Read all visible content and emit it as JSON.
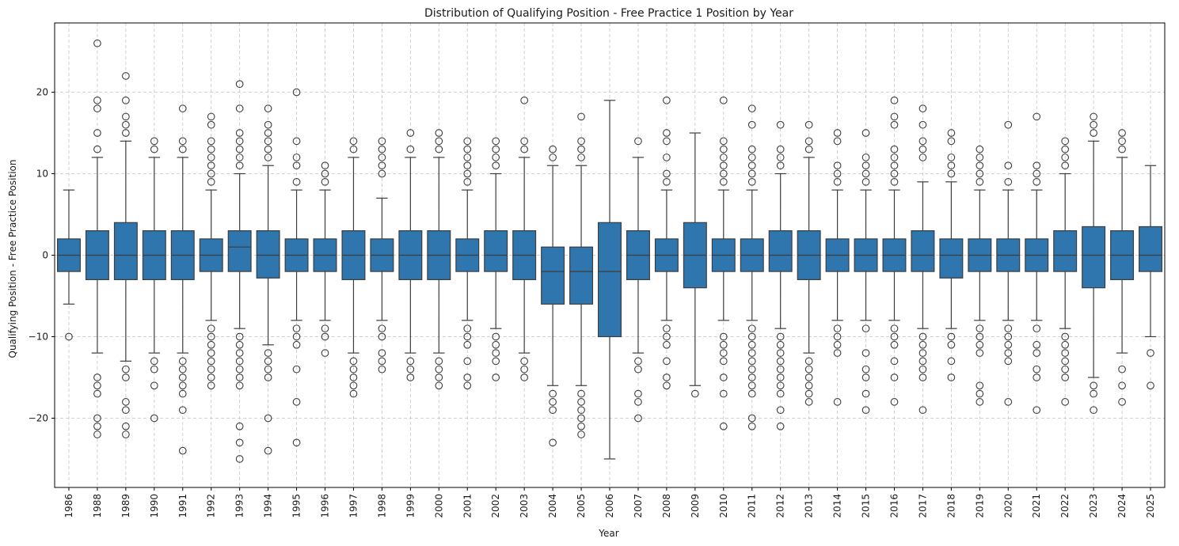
{
  "chart_data": {
    "type": "box",
    "title": "Distribution of Qualifying Position - Free Practice 1 Position by Year",
    "xlabel": "Year",
    "ylabel": "Qualifying Position - Free Practice Position",
    "ylim": [
      -28.5,
      28.5
    ],
    "yticks": [
      -20,
      -10,
      0,
      10,
      20
    ],
    "ytick_labels": [
      "−20",
      "−10",
      "0",
      "10",
      "20"
    ],
    "grid": true,
    "box_color": "#2f76ae",
    "categories": [
      "1986",
      "1988",
      "1989",
      "1990",
      "1991",
      "1992",
      "1993",
      "1994",
      "1995",
      "1996",
      "1997",
      "1998",
      "1999",
      "2000",
      "2001",
      "2002",
      "2003",
      "2004",
      "2005",
      "2006",
      "2007",
      "2008",
      "2009",
      "2010",
      "2011",
      "2012",
      "2013",
      "2014",
      "2015",
      "2016",
      "2017",
      "2018",
      "2019",
      "2020",
      "2021",
      "2022",
      "2023",
      "2024",
      "2025"
    ],
    "boxes": [
      {
        "whislo": -6,
        "q1": -2,
        "med": 0,
        "q3": 2,
        "whishi": 8,
        "fliers": [
          -10
        ]
      },
      {
        "whislo": -12,
        "q1": -3,
        "med": 0,
        "q3": 3,
        "whishi": 12,
        "fliers": [
          26,
          19,
          18,
          15,
          13,
          -15,
          -16,
          -17,
          -20,
          -21,
          -22
        ]
      },
      {
        "whislo": -13,
        "q1": -3,
        "med": 0,
        "q3": 4,
        "whishi": 14,
        "fliers": [
          22,
          19,
          17,
          16,
          15,
          -14,
          -15,
          -18,
          -19,
          -21,
          -22
        ]
      },
      {
        "whislo": -12,
        "q1": -3,
        "med": 0,
        "q3": 3,
        "whishi": 12,
        "fliers": [
          14,
          13,
          -13,
          -14,
          -16,
          -20
        ]
      },
      {
        "whislo": -12,
        "q1": -3,
        "med": 0,
        "q3": 3,
        "whishi": 12,
        "fliers": [
          18,
          14,
          13,
          -13,
          -14,
          -15,
          -16,
          -17,
          -19,
          -24
        ]
      },
      {
        "whislo": -8,
        "q1": -2,
        "med": 0,
        "q3": 2,
        "whishi": 8,
        "fliers": [
          17,
          16,
          14,
          13,
          12,
          11,
          10,
          9,
          -9,
          -10,
          -11,
          -12,
          -13,
          -14,
          -15,
          -16
        ]
      },
      {
        "whislo": -9,
        "q1": -2,
        "med": 1,
        "q3": 3,
        "whishi": 10,
        "fliers": [
          21,
          18,
          15,
          14,
          13,
          12,
          11,
          -10,
          -11,
          -12,
          -13,
          -14,
          -15,
          -16,
          -21,
          -23,
          -25
        ]
      },
      {
        "whislo": -11,
        "q1": -2.8,
        "med": 0,
        "q3": 3,
        "whishi": 11,
        "fliers": [
          18,
          16,
          15,
          14,
          13,
          12,
          -12,
          -13,
          -14,
          -15,
          -20,
          -24
        ]
      },
      {
        "whislo": -8,
        "q1": -2,
        "med": 0,
        "q3": 2,
        "whishi": 8,
        "fliers": [
          20,
          14,
          12,
          11,
          9,
          -9,
          -10,
          -11,
          -14,
          -18,
          -23
        ]
      },
      {
        "whislo": -8,
        "q1": -2,
        "med": 0,
        "q3": 2,
        "whishi": 8,
        "fliers": [
          11,
          10,
          9,
          -9,
          -10,
          -12
        ]
      },
      {
        "whislo": -12,
        "q1": -3,
        "med": 0,
        "q3": 3,
        "whishi": 12,
        "fliers": [
          14,
          13,
          -13,
          -14,
          -15,
          -16,
          -17
        ]
      },
      {
        "whislo": -8,
        "q1": -2,
        "med": 0,
        "q3": 2,
        "whishi": 7,
        "fliers": [
          14,
          13,
          12,
          11,
          10,
          -9,
          -10,
          -12,
          -13,
          -14
        ]
      },
      {
        "whislo": -12,
        "q1": -3,
        "med": 0,
        "q3": 3,
        "whishi": 12,
        "fliers": [
          15,
          13,
          -13,
          -14,
          -15
        ]
      },
      {
        "whislo": -12,
        "q1": -3,
        "med": 0,
        "q3": 3,
        "whishi": 12,
        "fliers": [
          15,
          14,
          13,
          -13,
          -14,
          -15,
          -16
        ]
      },
      {
        "whislo": -8,
        "q1": -2,
        "med": 0,
        "q3": 2,
        "whishi": 8,
        "fliers": [
          14,
          13,
          12,
          11,
          10,
          9,
          -9,
          -10,
          -11,
          -13,
          -15,
          -16
        ]
      },
      {
        "whislo": -9,
        "q1": -2,
        "med": 0,
        "q3": 3,
        "whishi": 10,
        "fliers": [
          14,
          13,
          12,
          11,
          -10,
          -11,
          -12,
          -13,
          -15
        ]
      },
      {
        "whislo": -12,
        "q1": -3,
        "med": 0,
        "q3": 3,
        "whishi": 12,
        "fliers": [
          19,
          14,
          13,
          -13,
          -14,
          -15
        ]
      },
      {
        "whislo": -16,
        "q1": -6,
        "med": -2,
        "q3": 1,
        "whishi": 11,
        "fliers": [
          13,
          12,
          -17,
          -18,
          -19,
          -23
        ]
      },
      {
        "whislo": -16,
        "q1": -6,
        "med": -2,
        "q3": 1,
        "whishi": 11,
        "fliers": [
          17,
          14,
          13,
          12,
          -17,
          -18,
          -19,
          -20,
          -21,
          -22
        ]
      },
      {
        "whislo": -25,
        "q1": -10,
        "med": -2,
        "q3": 4,
        "whishi": 19,
        "fliers": []
      },
      {
        "whislo": -12,
        "q1": -3,
        "med": 0,
        "q3": 3,
        "whishi": 12,
        "fliers": [
          14,
          -13,
          -14,
          -17,
          -18,
          -20
        ]
      },
      {
        "whislo": -8,
        "q1": -2,
        "med": 0,
        "q3": 2,
        "whishi": 8,
        "fliers": [
          19,
          15,
          14,
          12,
          10,
          9,
          -9,
          -10,
          -11,
          -13,
          -15,
          -16
        ]
      },
      {
        "whislo": -16,
        "q1": -4,
        "med": 0,
        "q3": 4,
        "whishi": 15,
        "fliers": [
          -17
        ]
      },
      {
        "whislo": -8,
        "q1": -2,
        "med": 0,
        "q3": 2,
        "whishi": 8,
        "fliers": [
          19,
          14,
          13,
          12,
          11,
          10,
          9,
          -10,
          -11,
          -12,
          -13,
          -15,
          -17,
          -21
        ]
      },
      {
        "whislo": -8,
        "q1": -2,
        "med": 0,
        "q3": 2,
        "whishi": 8,
        "fliers": [
          18,
          16,
          13,
          12,
          11,
          10,
          9,
          -9,
          -10,
          -11,
          -12,
          -13,
          -14,
          -15,
          -16,
          -17,
          -20,
          -21
        ]
      },
      {
        "whislo": -9,
        "q1": -2,
        "med": 0,
        "q3": 3,
        "whishi": 10,
        "fliers": [
          16,
          13,
          12,
          11,
          -10,
          -11,
          -12,
          -13,
          -14,
          -15,
          -16,
          -17,
          -19,
          -21
        ]
      },
      {
        "whislo": -12,
        "q1": -3,
        "med": 0,
        "q3": 3,
        "whishi": 12,
        "fliers": [
          16,
          14,
          13,
          -13,
          -14,
          -15,
          -16,
          -17,
          -18
        ]
      },
      {
        "whislo": -8,
        "q1": -2,
        "med": 0,
        "q3": 2,
        "whishi": 8,
        "fliers": [
          15,
          14,
          11,
          10,
          9,
          -9,
          -10,
          -11,
          -12,
          -18
        ]
      },
      {
        "whislo": -8,
        "q1": -2,
        "med": 0,
        "q3": 2,
        "whishi": 8,
        "fliers": [
          15,
          12,
          11,
          10,
          9,
          -9,
          -12,
          -14,
          -15,
          -17,
          -19
        ]
      },
      {
        "whislo": -8,
        "q1": -2,
        "med": 0,
        "q3": 2,
        "whishi": 8,
        "fliers": [
          19,
          17,
          16,
          13,
          12,
          11,
          10,
          9,
          -9,
          -10,
          -11,
          -13,
          -15,
          -18
        ]
      },
      {
        "whislo": -9,
        "q1": -2,
        "med": 0,
        "q3": 3,
        "whishi": 9,
        "fliers": [
          18,
          16,
          14,
          13,
          12,
          -10,
          -11,
          -12,
          -13,
          -14,
          -15,
          -19
        ]
      },
      {
        "whislo": -9,
        "q1": -2.8,
        "med": 0,
        "q3": 2,
        "whishi": 9,
        "fliers": [
          15,
          14,
          12,
          11,
          10,
          -10,
          -11,
          -13,
          -15
        ]
      },
      {
        "whislo": -8,
        "q1": -2,
        "med": 0,
        "q3": 2,
        "whishi": 8,
        "fliers": [
          13,
          12,
          11,
          10,
          9,
          -9,
          -10,
          -11,
          -12,
          -16,
          -17,
          -18
        ]
      },
      {
        "whislo": -8,
        "q1": -2,
        "med": 0,
        "q3": 2,
        "whishi": 8,
        "fliers": [
          16,
          11,
          9,
          -9,
          -10,
          -11,
          -12,
          -13,
          -18
        ]
      },
      {
        "whislo": -8,
        "q1": -2,
        "med": 0,
        "q3": 2,
        "whishi": 8,
        "fliers": [
          17,
          11,
          10,
          9,
          -9,
          -11,
          -12,
          -14,
          -15,
          -19
        ]
      },
      {
        "whislo": -9,
        "q1": -2,
        "med": 0,
        "q3": 3,
        "whishi": 10,
        "fliers": [
          14,
          13,
          12,
          11,
          -10,
          -11,
          -12,
          -13,
          -14,
          -15,
          -18
        ]
      },
      {
        "whislo": -15,
        "q1": -4,
        "med": 0,
        "q3": 3.5,
        "whishi": 14,
        "fliers": [
          17,
          16,
          15,
          -16,
          -17,
          -19
        ]
      },
      {
        "whislo": -12,
        "q1": -3,
        "med": 0,
        "q3": 3,
        "whishi": 12,
        "fliers": [
          15,
          14,
          13,
          -14,
          -16,
          -18
        ]
      },
      {
        "whislo": -10,
        "q1": -2,
        "med": 0,
        "q3": 3.5,
        "whishi": 11,
        "fliers": [
          -12,
          -16
        ]
      }
    ]
  }
}
